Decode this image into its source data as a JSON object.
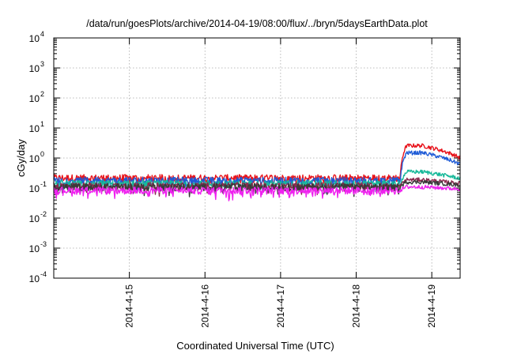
{
  "chart_data": {
    "type": "line",
    "title": "/data/run/goesPlots/archive/2014-04-19/08:00/flux/../bryn/5daysEarthData.plot",
    "xlabel": "Coordinated Universal Time (UTC)",
    "ylabel": "cGy/day",
    "yscale": "log",
    "ylim": [
      0.0001,
      10000
    ],
    "xlim": [
      "2014-04-14 00:00",
      "2014-04-19 09:00"
    ],
    "grid": true,
    "y_ticks": [
      {
        "base": "10",
        "exp": "-4"
      },
      {
        "base": "10",
        "exp": "-3"
      },
      {
        "base": "10",
        "exp": "-2"
      },
      {
        "base": "10",
        "exp": "-1"
      },
      {
        "base": "10",
        "exp": "0"
      },
      {
        "base": "10",
        "exp": "1"
      },
      {
        "base": "10",
        "exp": "2"
      },
      {
        "base": "10",
        "exp": "3"
      },
      {
        "base": "10",
        "exp": "4"
      }
    ],
    "x_ticks": [
      "2014-4-15",
      "2014-4-16",
      "2014-4-17",
      "2014-4-18",
      "2014-4-19"
    ],
    "event_start": "2014-04-18 14:00",
    "series": [
      {
        "color": "#e8141c",
        "baseline": 0.22,
        "peak": 2.6
      },
      {
        "color": "#1e5bd6",
        "baseline": 0.18,
        "peak": 1.5
      },
      {
        "color": "#18b99a",
        "baseline": 0.14,
        "peak": 0.35
      },
      {
        "color": "#8b2a4e",
        "baseline": 0.12,
        "peak": 0.19
      },
      {
        "color": "#3a3a3a",
        "baseline": 0.11,
        "peak": 0.16
      },
      {
        "color": "#ef22ef",
        "baseline": 0.085,
        "peak": 0.11
      }
    ]
  }
}
